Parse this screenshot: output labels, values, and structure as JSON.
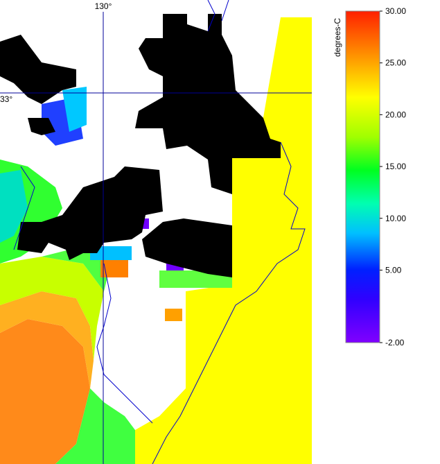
{
  "map": {
    "graticule": [
      {
        "label": "130°"
      },
      {
        "label": "33°"
      }
    ]
  },
  "colorbar": {
    "title": "degrees-C",
    "range": [
      -2,
      30
    ],
    "ticks": [
      {
        "value": 30,
        "label": "30.00"
      },
      {
        "value": 25,
        "label": "25.00"
      },
      {
        "value": 20,
        "label": "20.00"
      },
      {
        "value": 15,
        "label": "15.00"
      },
      {
        "value": 10,
        "label": "10.00"
      },
      {
        "value": 5,
        "label": "5.00"
      },
      {
        "value": -2,
        "label": "-2.00"
      }
    ]
  }
}
